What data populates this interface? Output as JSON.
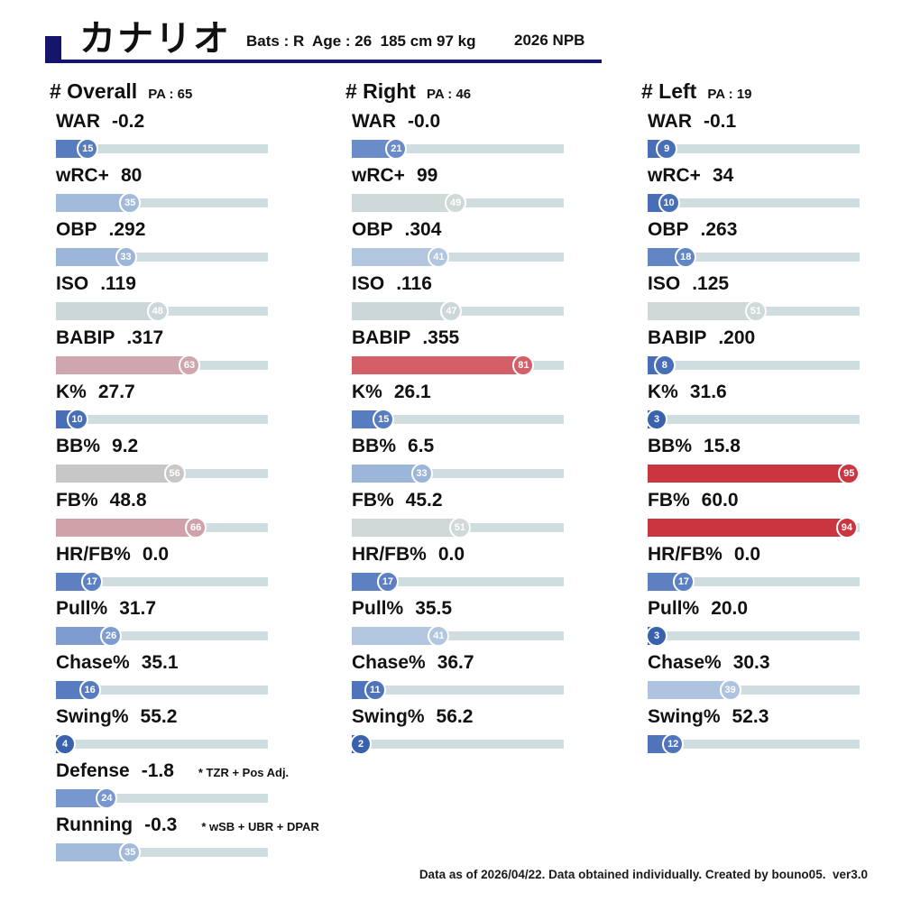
{
  "header": {
    "player_name": "カナリオ",
    "info": "Bats : R  Age : 26  185 cm 97 kg",
    "season": "2026 NPB"
  },
  "footer": "Data as of 2026/04/22. Data obtained individually. Created by bouno05.  ver3.0",
  "colors": {
    "accent": "#15156b",
    "track": "#cfdde0",
    "badge_text": "#ffffff"
  },
  "chart_data": {
    "type": "bar",
    "title": "カナリオ 2026 NPB batting percentile card",
    "x_range": [
      0,
      100
    ],
    "unit": "league percentile (bar length and badge = percentile rank)",
    "groups": [
      {
        "label": "# Overall",
        "pa_label": "PA : 65",
        "stats": [
          {
            "name": "WAR",
            "value": "-0.2",
            "percentile": 15,
            "color": "#587cc0"
          },
          {
            "name": "wRC+",
            "value": "80",
            "percentile": 35,
            "color": "#a2bbda"
          },
          {
            "name": "OBP",
            "value": ".292",
            "percentile": 33,
            "color": "#9cb6d9"
          },
          {
            "name": "ISO",
            "value": ".119",
            "percentile": 48,
            "color": "#ccd7da"
          },
          {
            "name": "BABIP",
            "value": ".317",
            "percentile": 63,
            "color": "#d0a6ae"
          },
          {
            "name": "K%",
            "value": "27.7",
            "percentile": 10,
            "color": "#486eb8"
          },
          {
            "name": "BB%",
            "value": "9.2",
            "percentile": 56,
            "color": "#c7c7c7"
          },
          {
            "name": "FB%",
            "value": "48.8",
            "percentile": 66,
            "color": "#cfa2aa"
          },
          {
            "name": "HR/FB%",
            "value": "0.0",
            "percentile": 17,
            "color": "#5d80c2"
          },
          {
            "name": "Pull%",
            "value": "31.7",
            "percentile": 26,
            "color": "#7e9cd0"
          },
          {
            "name": "Chase%",
            "value": "35.1",
            "percentile": 16,
            "color": "#587cc0"
          },
          {
            "name": "Swing%",
            "value": "55.2",
            "percentile": 4,
            "color": "#3a61ad"
          },
          {
            "name": "Defense",
            "value": "-1.8",
            "percentile": 24,
            "color": "#7897ce",
            "note": "* TZR + Pos Adj."
          },
          {
            "name": "Running",
            "value": "-0.3",
            "percentile": 35,
            "color": "#a2bbda",
            "note": "* wSB + UBR + DPAR"
          }
        ]
      },
      {
        "label": "# Right",
        "pa_label": "PA : 46",
        "stats": [
          {
            "name": "WAR",
            "value": "-0.0",
            "percentile": 21,
            "color": "#6a8cc8"
          },
          {
            "name": "wRC+",
            "value": "99",
            "percentile": 49,
            "color": "#cfd9da"
          },
          {
            "name": "OBP",
            "value": ".304",
            "percentile": 41,
            "color": "#b2c7df"
          },
          {
            "name": "ISO",
            "value": ".116",
            "percentile": 47,
            "color": "#ccd7da"
          },
          {
            "name": "BABIP",
            "value": ".355",
            "percentile": 81,
            "color": "#d55f69"
          },
          {
            "name": "K%",
            "value": "26.1",
            "percentile": 15,
            "color": "#587cc0"
          },
          {
            "name": "BB%",
            "value": "6.5",
            "percentile": 33,
            "color": "#9cb6d9"
          },
          {
            "name": "FB%",
            "value": "45.2",
            "percentile": 51,
            "color": "#d0d8d8"
          },
          {
            "name": "HR/FB%",
            "value": "0.0",
            "percentile": 17,
            "color": "#5d80c2"
          },
          {
            "name": "Pull%",
            "value": "35.5",
            "percentile": 41,
            "color": "#b2c7df"
          },
          {
            "name": "Chase%",
            "value": "36.7",
            "percentile": 11,
            "color": "#4f74bc"
          },
          {
            "name": "Swing%",
            "value": "56.2",
            "percentile": 2,
            "color": "#3a61ad"
          }
        ]
      },
      {
        "label": "# Left",
        "pa_label": "PA : 19",
        "stats": [
          {
            "name": "WAR",
            "value": "-0.1",
            "percentile": 9,
            "color": "#486eb8"
          },
          {
            "name": "wRC+",
            "value": "34",
            "percentile": 10,
            "color": "#486eb8"
          },
          {
            "name": "OBP",
            "value": ".263",
            "percentile": 18,
            "color": "#6285c4"
          },
          {
            "name": "ISO",
            "value": ".125",
            "percentile": 51,
            "color": "#d0d8d8"
          },
          {
            "name": "BABIP",
            "value": ".200",
            "percentile": 8,
            "color": "#486eb8"
          },
          {
            "name": "K%",
            "value": "31.6",
            "percentile": 3,
            "color": "#3a61ad"
          },
          {
            "name": "BB%",
            "value": "15.8",
            "percentile": 95,
            "color": "#cb3540"
          },
          {
            "name": "FB%",
            "value": "60.0",
            "percentile": 94,
            "color": "#cb3540"
          },
          {
            "name": "HR/FB%",
            "value": "0.0",
            "percentile": 17,
            "color": "#5d80c2"
          },
          {
            "name": "Pull%",
            "value": "20.0",
            "percentile": 3,
            "color": "#3a61ad"
          },
          {
            "name": "Chase%",
            "value": "30.3",
            "percentile": 39,
            "color": "#aec4de"
          },
          {
            "name": "Swing%",
            "value": "52.3",
            "percentile": 12,
            "color": "#4f74bc"
          }
        ]
      }
    ]
  }
}
